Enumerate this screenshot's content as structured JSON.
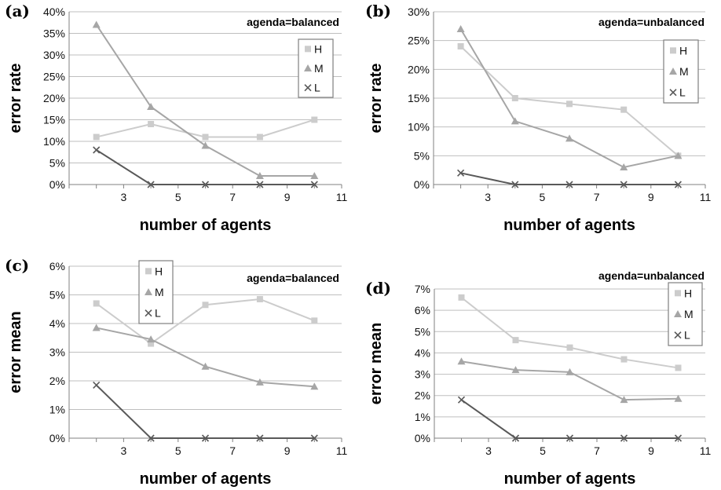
{
  "chart_data": [
    {
      "type": "line",
      "panel_label": "(a)",
      "annotation": "agenda=balanced",
      "xlabel": "number of agents",
      "ylabel": "error rate",
      "xlim": [
        1,
        11
      ],
      "xticks": [
        "3",
        "5",
        "7",
        "9",
        "11"
      ],
      "ylim": [
        0,
        40
      ],
      "yticks": [
        "0%",
        "5%",
        "10%",
        "15%",
        "20%",
        "25%",
        "30%",
        "35%",
        "40%"
      ],
      "grid": "horizontal",
      "legend_position": "top-right",
      "x": [
        2,
        4,
        6,
        8,
        10
      ],
      "series": [
        {
          "name": "H",
          "color": "#cccccc",
          "marker": "square",
          "values": [
            11,
            14,
            11,
            11,
            15
          ]
        },
        {
          "name": "M",
          "color": "#a6a6a6",
          "marker": "triangle",
          "values": [
            37,
            18,
            9,
            2,
            2
          ]
        },
        {
          "name": "L",
          "color": "#595959",
          "marker": "x",
          "values": [
            8,
            0,
            0,
            0,
            0
          ]
        }
      ]
    },
    {
      "type": "line",
      "panel_label": "(b)",
      "annotation": "agenda=unbalanced",
      "xlabel": "number of agents",
      "ylabel": "error rate",
      "xlim": [
        1,
        11
      ],
      "xticks": [
        "3",
        "5",
        "7",
        "9",
        "11"
      ],
      "ylim": [
        0,
        30
      ],
      "yticks": [
        "0%",
        "5%",
        "10%",
        "15%",
        "20%",
        "25%",
        "30%"
      ],
      "grid": "horizontal",
      "legend_position": "top-right",
      "x": [
        2,
        4,
        6,
        8,
        10
      ],
      "series": [
        {
          "name": "H",
          "color": "#cccccc",
          "marker": "square",
          "values": [
            24,
            15,
            14,
            13,
            5
          ]
        },
        {
          "name": "M",
          "color": "#a6a6a6",
          "marker": "triangle",
          "values": [
            27,
            11,
            8,
            3,
            5
          ]
        },
        {
          "name": "L",
          "color": "#595959",
          "marker": "x",
          "values": [
            2,
            0,
            0,
            0,
            0
          ]
        }
      ]
    },
    {
      "type": "line",
      "panel_label": "(c)",
      "annotation": "agenda=balanced",
      "xlabel": "number of agents",
      "ylabel": "error mean",
      "xlim": [
        1,
        11
      ],
      "xticks": [
        "3",
        "5",
        "7",
        "9",
        "11"
      ],
      "ylim": [
        0,
        6
      ],
      "yticks": [
        "0%",
        "1%",
        "2%",
        "3%",
        "4%",
        "5%",
        "6%"
      ],
      "grid": "horizontal",
      "legend_position": "top-left",
      "x": [
        2,
        4,
        6,
        8,
        10
      ],
      "series": [
        {
          "name": "H",
          "color": "#cccccc",
          "marker": "square",
          "values": [
            4.7,
            3.3,
            4.65,
            4.85,
            4.1
          ]
        },
        {
          "name": "M",
          "color": "#a6a6a6",
          "marker": "triangle",
          "values": [
            3.85,
            3.45,
            2.5,
            1.95,
            1.8
          ]
        },
        {
          "name": "L",
          "color": "#595959",
          "marker": "x",
          "values": [
            1.85,
            0,
            0,
            0,
            0
          ]
        }
      ]
    },
    {
      "type": "line",
      "panel_label": "(d)",
      "annotation": "agenda=unbalanced",
      "xlabel": "number of agents",
      "ylabel": "error mean",
      "xlim": [
        1,
        11
      ],
      "xticks": [
        "3",
        "5",
        "7",
        "9",
        "11"
      ],
      "ylim": [
        0,
        7
      ],
      "yticks": [
        "0%",
        "1%",
        "2%",
        "3%",
        "4%",
        "5%",
        "6%",
        "7%"
      ],
      "grid": "horizontal",
      "legend_position": "top-right",
      "x": [
        2,
        4,
        6,
        8,
        10
      ],
      "series": [
        {
          "name": "H",
          "color": "#cccccc",
          "marker": "square",
          "values": [
            6.6,
            4.6,
            4.25,
            3.7,
            3.3
          ]
        },
        {
          "name": "M",
          "color": "#a6a6a6",
          "marker": "triangle",
          "values": [
            3.6,
            3.2,
            3.1,
            1.8,
            1.85
          ]
        },
        {
          "name": "L",
          "color": "#595959",
          "marker": "x",
          "values": [
            1.8,
            0,
            0,
            0,
            0
          ]
        }
      ]
    }
  ]
}
